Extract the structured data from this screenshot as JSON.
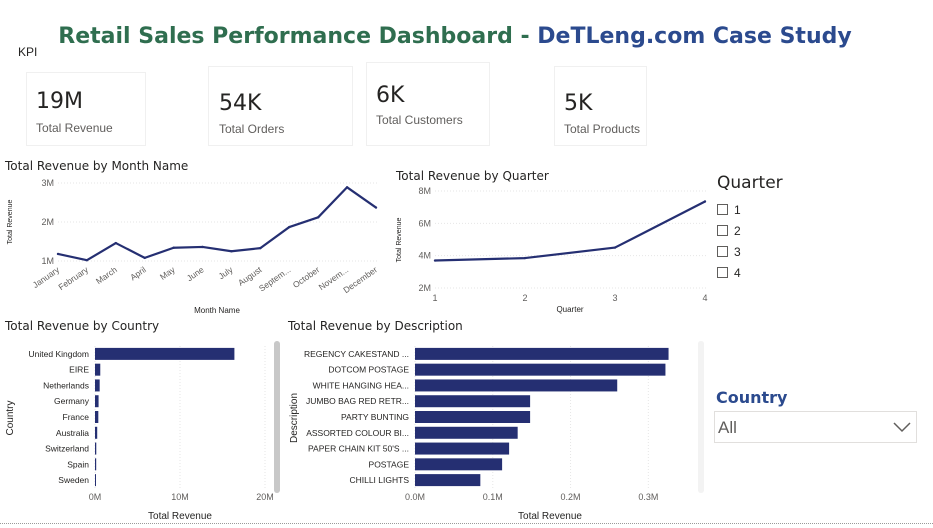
{
  "title": {
    "part1": "Retail Sales Performance Dashboard",
    "sep": " - ",
    "part2": "DeTLeng.com Case Study"
  },
  "kpi_section_label": "KPI",
  "kpis": [
    {
      "value": "19M",
      "label": "Total Revenue"
    },
    {
      "value": "54K",
      "label": "Total Orders"
    },
    {
      "value": "6K",
      "label": "Total Customers"
    },
    {
      "value": "5K",
      "label": "Total Products"
    }
  ],
  "colors": {
    "title_green": "#2f6e4f",
    "title_blue": "#2b4a8e",
    "series": "#252f72"
  },
  "quarter_slicer": {
    "title": "Quarter",
    "options": [
      "1",
      "2",
      "3",
      "4"
    ]
  },
  "country_slicer": {
    "title": "Country",
    "value": "All",
    "icon": "chevron-down-icon"
  },
  "chart_data": [
    {
      "type": "line",
      "title": "Total Revenue by Month Name",
      "xlabel": "Month Name",
      "ylabel": "Total Revenue",
      "ylim": [
        1000000,
        3000000
      ],
      "yticks": [
        "1M",
        "2M",
        "3M"
      ],
      "grid": true,
      "categories": [
        "January",
        "February",
        "March",
        "April",
        "May",
        "June",
        "July",
        "August",
        "Septem...",
        "October",
        "Novem...",
        "December"
      ],
      "values": [
        1180000,
        1020000,
        1460000,
        1080000,
        1340000,
        1360000,
        1250000,
        1330000,
        1870000,
        2120000,
        2890000,
        2370000
      ]
    },
    {
      "type": "line",
      "title": "Total Revenue by Quarter",
      "xlabel": "Quarter",
      "ylabel": "Total Revenue",
      "ylim": [
        2000000,
        8000000
      ],
      "yticks": [
        "2M",
        "4M",
        "6M",
        "8M"
      ],
      "grid": true,
      "x": [
        "1",
        "2",
        "3",
        "4"
      ],
      "values": [
        3700000,
        3850000,
        4500000,
        7350000
      ]
    },
    {
      "type": "bar",
      "orientation": "horizontal",
      "title": "Total Revenue by Country",
      "xlabel": "Total Revenue",
      "ylabel": "Country",
      "xlim": [
        0,
        20000000
      ],
      "xticks": [
        "0M",
        "10M",
        "20M"
      ],
      "grid": true,
      "categories": [
        "United Kingdom",
        "EIRE",
        "Netherlands",
        "Germany",
        "France",
        "Australia",
        "Switzerland",
        "Spain",
        "Sweden"
      ],
      "values": [
        16400000,
        620000,
        550000,
        420000,
        390000,
        260000,
        150000,
        140000,
        100000
      ]
    },
    {
      "type": "bar",
      "orientation": "horizontal",
      "title": "Total Revenue by Description",
      "xlabel": "Total Revenue",
      "ylabel": "Description",
      "xlim": [
        0,
        360000
      ],
      "xticks": [
        "0.0M",
        "0.1M",
        "0.2M",
        "0.3M"
      ],
      "grid": true,
      "categories": [
        "REGENCY CAKESTAND ...",
        "DOTCOM POSTAGE",
        "WHITE HANGING HEA...",
        "JUMBO BAG RED RETR...",
        "PARTY BUNTING",
        "ASSORTED COLOUR BI...",
        "PAPER CHAIN KIT 50'S ...",
        "POSTAGE",
        "CHILLI LIGHTS"
      ],
      "values": [
        326000,
        322000,
        260000,
        148000,
        148000,
        132000,
        121000,
        112000,
        84000
      ]
    }
  ]
}
